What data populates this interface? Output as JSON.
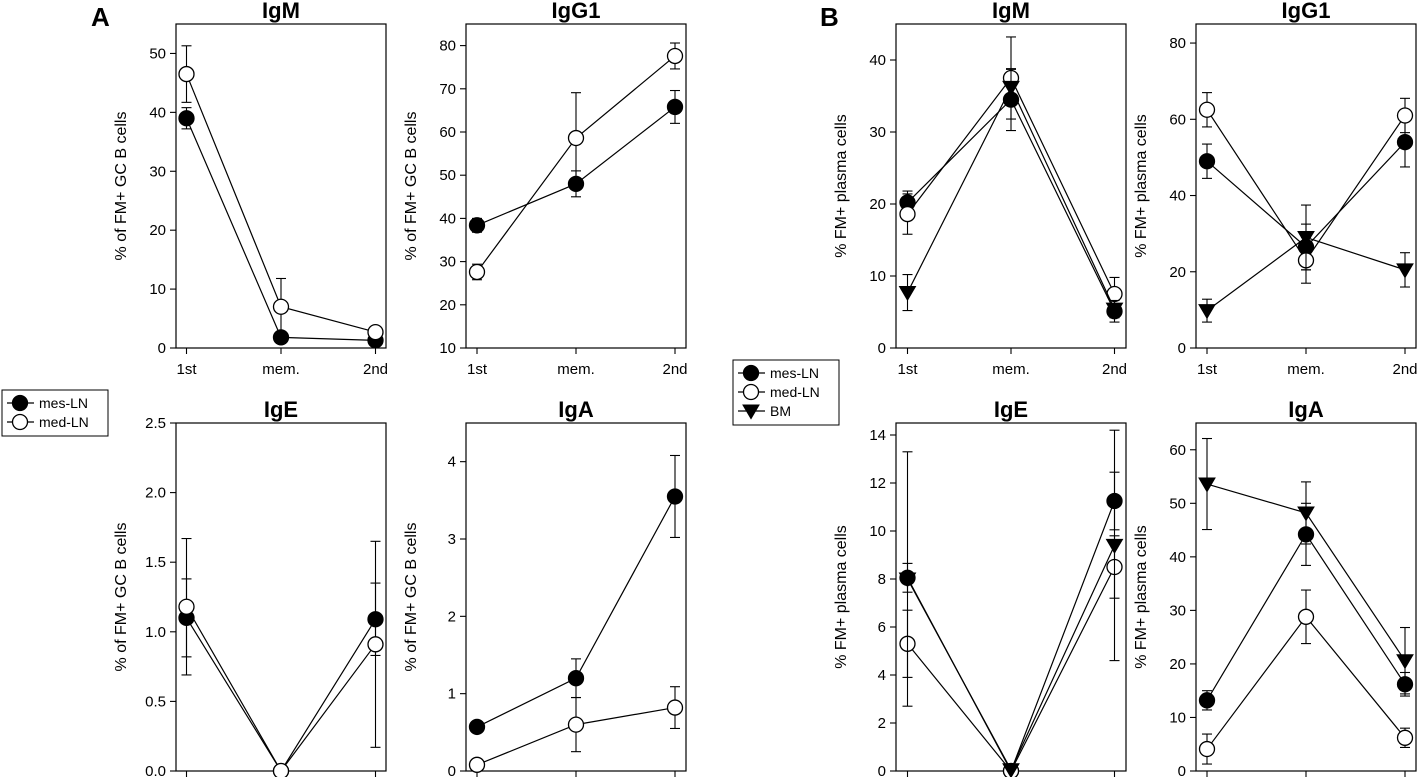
{
  "panels": {
    "a": "A",
    "b": "B"
  },
  "legends": {
    "A": [
      "mes-LN",
      "med-LN"
    ],
    "B": [
      "mes-LN",
      "med-LN",
      "BM"
    ]
  },
  "chart_data": [
    {
      "id": "A-IgM",
      "type": "line",
      "title": "IgM",
      "ylabel": "% of FM+ GC B cells",
      "categories": [
        "1st",
        "mem.",
        "2nd"
      ],
      "ylim": [
        0,
        55
      ],
      "yticks": [
        0,
        10,
        20,
        30,
        40,
        50
      ],
      "series": [
        {
          "name": "mes-LN",
          "marker": "filled-circle",
          "values": [
            39,
            1.8,
            1.3
          ],
          "errors": [
            1.8,
            1.0,
            0.9
          ]
        },
        {
          "name": "med-LN",
          "marker": "open-circle",
          "values": [
            46.5,
            7,
            2.7
          ],
          "errors": [
            4.8,
            4.8,
            0.6
          ]
        }
      ]
    },
    {
      "id": "A-IgG1",
      "type": "line",
      "title": "IgG1",
      "ylabel": "% of FM+ GC B cells",
      "categories": [
        "1st",
        "mem.",
        "2nd"
      ],
      "ylim": [
        10,
        85
      ],
      "yticks": [
        10,
        20,
        30,
        40,
        50,
        60,
        70,
        80
      ],
      "series": [
        {
          "name": "mes-LN",
          "marker": "filled-circle",
          "values": [
            38.4,
            48,
            65.8
          ],
          "errors": [
            1.6,
            3,
            3.8
          ]
        },
        {
          "name": "med-LN",
          "marker": "open-circle",
          "values": [
            27.6,
            58.6,
            77.6
          ],
          "errors": [
            1.8,
            10.5,
            3
          ]
        }
      ]
    },
    {
      "id": "A-IgE",
      "type": "line",
      "title": "IgE",
      "ylabel": "% of FM+ GC B cells",
      "categories": [
        "1st",
        "mem.",
        "2nd"
      ],
      "ylim": [
        0,
        2.5
      ],
      "yticks": [
        "0.0",
        "0.5",
        "1.0",
        "1.5",
        "2.0",
        "2.5"
      ],
      "series": [
        {
          "name": "mes-LN",
          "marker": "filled-circle",
          "values": [
            1.1,
            0,
            1.09
          ],
          "errors": [
            0.28,
            0,
            0.26
          ]
        },
        {
          "name": "med-LN",
          "marker": "open-circle",
          "values": [
            1.18,
            0,
            0.91
          ],
          "errors": [
            0.49,
            0,
            0.74
          ]
        }
      ]
    },
    {
      "id": "A-IgA",
      "type": "line",
      "title": "IgA",
      "ylabel": "% of FM+ GC B cells",
      "categories": [
        "1st",
        "mem.",
        "2nd"
      ],
      "ylim": [
        0,
        4.5
      ],
      "yticks": [
        0,
        1,
        2,
        3,
        4
      ],
      "series": [
        {
          "name": "mes-LN",
          "marker": "filled-circle",
          "values": [
            0.57,
            1.2,
            3.55
          ],
          "errors": [
            0.05,
            0.25,
            0.53
          ]
        },
        {
          "name": "med-LN",
          "marker": "open-circle",
          "values": [
            0.08,
            0.6,
            0.82
          ],
          "errors": [
            0.03,
            0.35,
            0.27
          ]
        }
      ]
    },
    {
      "id": "B-IgM",
      "type": "line",
      "title": "IgM",
      "ylabel": "% FM+ plasma cells",
      "categories": [
        "1st",
        "mem.",
        "2nd"
      ],
      "ylim": [
        0,
        45
      ],
      "yticks": [
        0,
        10,
        20,
        30,
        40
      ],
      "series": [
        {
          "name": "mes-LN",
          "marker": "filled-circle",
          "values": [
            20.2,
            34.5,
            5.1
          ],
          "errors": [
            1.6,
            4.3,
            1.5
          ]
        },
        {
          "name": "med-LN",
          "marker": "open-circle",
          "values": [
            18.6,
            37.5,
            7.5
          ],
          "errors": [
            2.8,
            5.7,
            2.3
          ]
        },
        {
          "name": "BM",
          "marker": "filled-triangle",
          "values": [
            7.7,
            36.2,
            5.4
          ],
          "errors": [
            2.5,
            2.5,
            1.2
          ]
        }
      ]
    },
    {
      "id": "B-IgG1",
      "type": "line",
      "title": "IgG1",
      "ylabel": "% FM+ plasma cells",
      "categories": [
        "1st",
        "mem.",
        "2nd"
      ],
      "ylim": [
        0,
        85
      ],
      "yticks": [
        0,
        20,
        40,
        60,
        80
      ],
      "series": [
        {
          "name": "mes-LN",
          "marker": "filled-circle",
          "values": [
            49,
            26.5,
            54
          ],
          "errors": [
            4.5,
            6,
            6.5
          ]
        },
        {
          "name": "med-LN",
          "marker": "open-circle",
          "values": [
            62.5,
            23,
            61
          ],
          "errors": [
            4.5,
            6,
            4.5
          ]
        },
        {
          "name": "BM",
          "marker": "filled-triangle",
          "values": [
            9.8,
            29,
            20.5
          ],
          "errors": [
            3,
            8.5,
            4.5
          ]
        }
      ]
    },
    {
      "id": "B-IgE",
      "type": "line",
      "title": "IgE",
      "ylabel": "% FM+ plasma cells",
      "categories": [
        "1st",
        "mem.",
        "2nd"
      ],
      "ylim": [
        0,
        14.5
      ],
      "yticks": [
        0,
        2,
        4,
        6,
        8,
        10,
        12,
        14
      ],
      "series": [
        {
          "name": "mes-LN",
          "marker": "filled-circle",
          "values": [
            8.05,
            0,
            11.25
          ],
          "errors": [
            0.6,
            0,
            1.2
          ]
        },
        {
          "name": "med-LN",
          "marker": "open-circle",
          "values": [
            5.3,
            0,
            8.5
          ],
          "errors": [
            1.4,
            0,
            1.3
          ]
        },
        {
          "name": "BM",
          "marker": "filled-triangle",
          "values": [
            8.0,
            0.05,
            9.4
          ],
          "errors": [
            5.3,
            0,
            4.8
          ]
        }
      ]
    },
    {
      "id": "B-IgA",
      "type": "line",
      "title": "IgA",
      "ylabel": "% FM+ plasma cells",
      "categories": [
        "1st",
        "mem.",
        "2nd"
      ],
      "ylim": [
        0,
        65
      ],
      "yticks": [
        0,
        10,
        20,
        30,
        40,
        50,
        60
      ],
      "series": [
        {
          "name": "mes-LN",
          "marker": "filled-circle",
          "values": [
            13.2,
            44.2,
            16.2
          ],
          "errors": [
            1.8,
            5.8,
            2.2
          ]
        },
        {
          "name": "med-LN",
          "marker": "open-circle",
          "values": [
            4.1,
            28.8,
            6.2
          ],
          "errors": [
            2.8,
            5,
            1.8
          ]
        },
        {
          "name": "BM",
          "marker": "filled-triangle",
          "values": [
            53.6,
            48.2,
            20.6
          ],
          "errors": [
            8.5,
            5.8,
            6.2
          ]
        }
      ]
    }
  ]
}
